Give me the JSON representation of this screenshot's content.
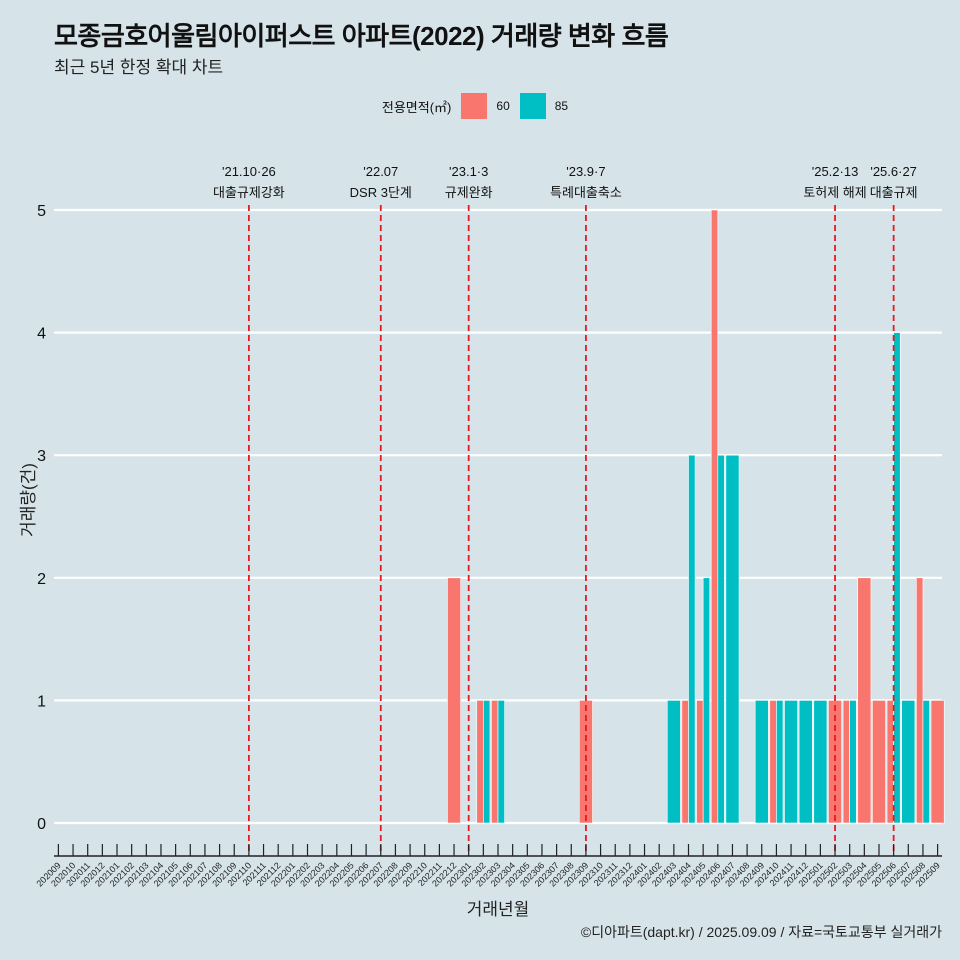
{
  "title": "모종금호어울림아이퍼스트 아파트(2022) 거래량 변화 흐름",
  "subtitle": "최근 5년 한정 확대 차트",
  "legend": {
    "title": "전용면적(㎡)",
    "items": [
      {
        "label": "60",
        "color": "#f8766d"
      },
      {
        "label": "85",
        "color": "#00bfc4"
      }
    ]
  },
  "caption": "©디아파트(dapt.kr) / 2025.09.09 / 자료=국토교통부 실거래가",
  "chart_data": {
    "type": "bar",
    "title": "모종금호어울림아이퍼스트 아파트(2022) 거래량 변화 흐름",
    "xlabel": "거래년월",
    "ylabel": "거래량(건)",
    "ylim": [
      -0.25,
      5.2
    ],
    "yticks": [
      0,
      1,
      2,
      3,
      4,
      5
    ],
    "grid": true,
    "legend_position": "top",
    "categories": [
      "202009",
      "202010",
      "202011",
      "202012",
      "202101",
      "202102",
      "202103",
      "202104",
      "202105",
      "202106",
      "202107",
      "202108",
      "202109",
      "202110",
      "202111",
      "202112",
      "202201",
      "202202",
      "202203",
      "202204",
      "202205",
      "202206",
      "202207",
      "202208",
      "202209",
      "202210",
      "202211",
      "202212",
      "202301",
      "202302",
      "202303",
      "202304",
      "202305",
      "202306",
      "202307",
      "202308",
      "202309",
      "202310",
      "202311",
      "202312",
      "202401",
      "202402",
      "202403",
      "202404",
      "202405",
      "202406",
      "202407",
      "202408",
      "202409",
      "202410",
      "202411",
      "202412",
      "202501",
      "202502",
      "202503",
      "202504",
      "202505",
      "202506",
      "202507",
      "202508",
      "202509"
    ],
    "tick_labels": [
      "202009",
      "202010",
      "202011",
      "202012",
      "202101",
      "202102",
      "202103",
      "202104",
      "202105",
      "202106",
      "202107",
      "202108",
      "202109",
      "202110",
      "202111",
      "202112",
      "202201",
      "202202",
      "202203",
      "202204",
      "202205",
      "202206",
      "202207",
      "202208",
      "202209",
      "202210",
      "202211",
      "202212",
      "202301",
      "202302",
      "202303",
      "202304",
      "202305",
      "202306",
      "202307",
      "202308",
      "202309",
      "202310",
      "202311",
      "202312",
      "202401",
      "202402",
      "202403",
      "202404",
      "202405",
      "202406",
      "202407",
      "202408",
      "202409",
      "202410",
      "202411",
      "202412",
      "202501",
      "202502",
      "202503",
      "202504",
      "202505",
      "202506",
      "202507",
      "202508",
      "202509"
    ],
    "series": [
      {
        "name": "60",
        "color": "#f8766d",
        "values": [
          0,
          0,
          0,
          0,
          0,
          0,
          0,
          0,
          0,
          0,
          0,
          0,
          0,
          0,
          0,
          0,
          0,
          0,
          0,
          0,
          0,
          0,
          0,
          0,
          0,
          0,
          0,
          2,
          0,
          1,
          1,
          0,
          0,
          0,
          0,
          0,
          1,
          0,
          0,
          0,
          0,
          0,
          0,
          1,
          1,
          5,
          0,
          0,
          0,
          1,
          0,
          0,
          0,
          1,
          1,
          2,
          1,
          1,
          0,
          2,
          1
        ]
      },
      {
        "name": "85",
        "color": "#00bfc4",
        "values": [
          0,
          0,
          0,
          0,
          0,
          0,
          0,
          0,
          0,
          0,
          0,
          0,
          0,
          0,
          0,
          0,
          0,
          0,
          0,
          0,
          0,
          0,
          0,
          0,
          0,
          0,
          0,
          0,
          0,
          1,
          1,
          0,
          0,
          0,
          0,
          0,
          0,
          0,
          0,
          0,
          0,
          0,
          1,
          3,
          2,
          3,
          3,
          0,
          1,
          1,
          1,
          1,
          1,
          0,
          1,
          0,
          0,
          4,
          1,
          1,
          0
        ]
      }
    ],
    "annotations": [
      {
        "date": "'21.10·26",
        "label": "대출규제강화",
        "at": "202110"
      },
      {
        "date": "'22.07",
        "label": "DSR 3단계",
        "at": "202207"
      },
      {
        "date": "'23.1·3",
        "label": "규제완화",
        "at": "202301"
      },
      {
        "date": "'23.9·7",
        "label": "특례대출축소",
        "at": "202309"
      },
      {
        "date": "'25.2·13",
        "label": "토허제 해제",
        "at": "202502"
      },
      {
        "date": "'25.6·27",
        "label": "대출규제",
        "at": "202506"
      }
    ]
  }
}
